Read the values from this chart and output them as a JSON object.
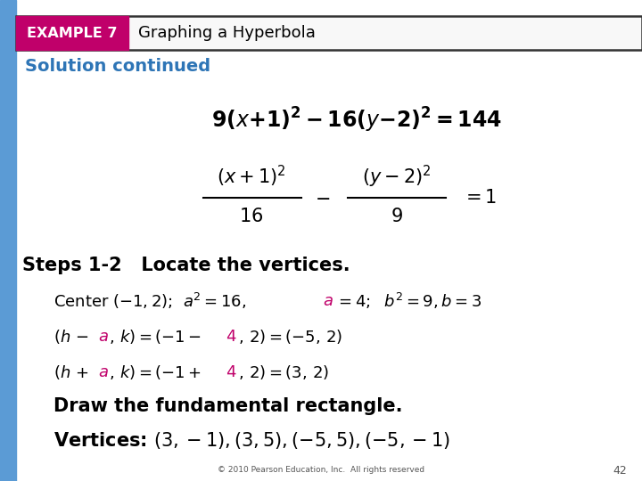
{
  "bg_color": "#ffffff",
  "left_bar_color": "#5b9bd5",
  "example_bg_color": "#c0006a",
  "example_text": "EXAMPLE 7",
  "example_text_color": "#ffffff",
  "header_text": "Graphing a Hyperbola",
  "header_text_color": "#000000",
  "header_bg_color": "#f8f8f8",
  "header_border_color": "#333333",
  "solution_text": "Solution continued",
  "solution_color": "#2e75b6",
  "page_number": "42",
  "copyright": "© 2010 Pearson Education, Inc.  All rights reserved",
  "magenta_color": "#c0006a",
  "black_color": "#000000"
}
